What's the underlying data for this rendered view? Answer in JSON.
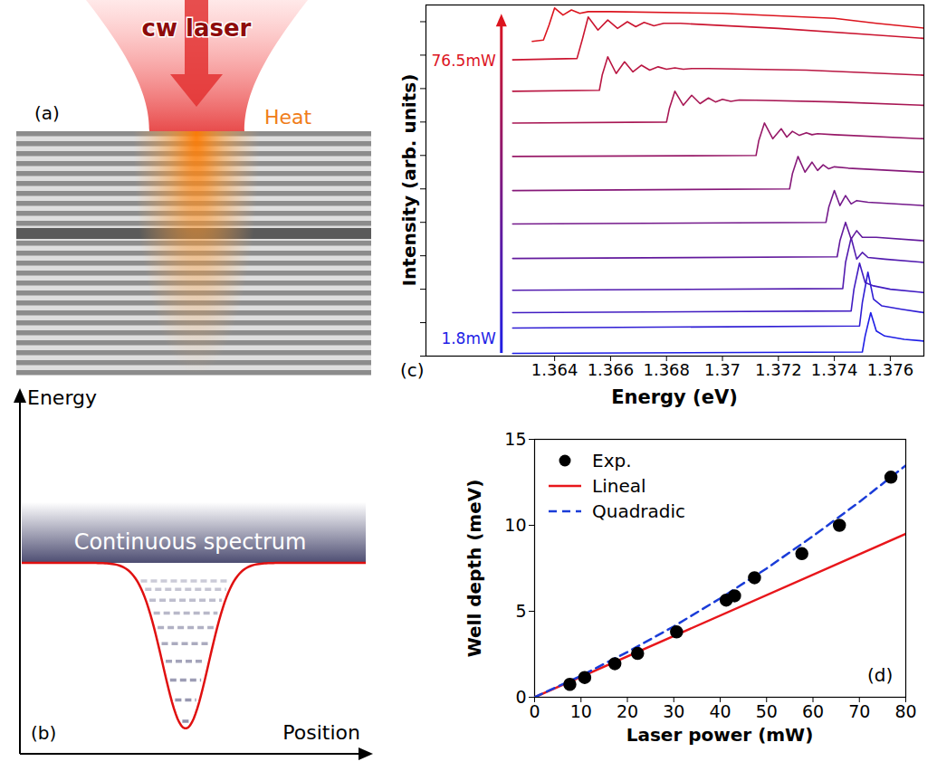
{
  "chart_data": [
    {
      "type": "line",
      "panel_label": "(c)",
      "x_label": "Energy (eV)",
      "y_label": "Intensity (arb. units)",
      "xlim": [
        1.3594,
        1.3772
      ],
      "xticks": [
        1.364,
        1.366,
        1.368,
        1.37,
        1.372,
        1.374,
        1.376
      ],
      "ylim": [
        0,
        10.5
      ],
      "yticks": [
        0,
        1,
        2,
        3,
        4,
        5,
        6,
        7,
        8,
        9,
        10
      ],
      "tick_labels": "x",
      "annotations": [
        {
          "text": "1.8mW",
          "color": "#1e1ee6"
        },
        {
          "text": "76.5mW",
          "color": "#dc141e"
        }
      ],
      "series": [
        {
          "color": "#1e1ee6",
          "x": [
            1.3625,
            1.375,
            1.3751,
            1.3753,
            1.3755,
            1.3758,
            1.3765,
            1.3772
          ],
          "values": [
            0.08,
            0.12,
            0.6,
            1.3,
            0.75,
            0.6,
            0.5,
            0.45
          ]
        },
        {
          "color": "#2f1dd4",
          "x": [
            1.3625,
            1.3749,
            1.375,
            1.3752,
            1.3754,
            1.3757,
            1.3764,
            1.3772
          ],
          "values": [
            0.84,
            0.9,
            1.6,
            2.51,
            1.7,
            1.5,
            1.4,
            1.3
          ]
        },
        {
          "color": "#411cc2",
          "x": [
            1.3625,
            1.3746,
            1.3747,
            1.3749,
            1.3751,
            1.3754,
            1.376,
            1.3772
          ],
          "values": [
            1.3,
            1.35,
            2.0,
            2.78,
            2.2,
            2.1,
            2.0,
            1.9
          ]
        },
        {
          "color": "#521baf",
          "x": [
            1.3625,
            1.3743,
            1.3744,
            1.3746,
            1.3748,
            1.375,
            1.3752,
            1.3758,
            1.3772
          ],
          "values": [
            1.97,
            2.02,
            2.8,
            3.54,
            2.9,
            3.1,
            2.95,
            2.9,
            2.8
          ]
        },
        {
          "color": "#631a9d",
          "x": [
            1.3625,
            1.3741,
            1.3742,
            1.3744,
            1.3746,
            1.3748,
            1.375,
            1.3755,
            1.3772
          ],
          "values": [
            2.92,
            2.97,
            3.45,
            4.0,
            3.5,
            3.75,
            3.55,
            3.55,
            3.45
          ]
        },
        {
          "color": "#74198b",
          "x": [
            1.3625,
            1.3737,
            1.3738,
            1.374,
            1.3742,
            1.3744,
            1.3746,
            1.3748,
            1.3752,
            1.3772
          ],
          "values": [
            3.95,
            4.0,
            4.45,
            4.95,
            4.5,
            4.8,
            4.55,
            4.65,
            4.6,
            4.5
          ]
        },
        {
          "color": "#861979",
          "x": [
            1.3625,
            1.3724,
            1.3725,
            1.3727,
            1.37295,
            1.3732,
            1.3734,
            1.3736,
            1.3738,
            1.374,
            1.3745,
            1.3772
          ],
          "values": [
            4.95,
            5.0,
            5.45,
            5.97,
            5.5,
            5.8,
            5.55,
            5.72,
            5.6,
            5.66,
            5.62,
            5.5
          ]
        },
        {
          "color": "#971867",
          "x": [
            1.3625,
            1.3712,
            1.3713,
            1.3715,
            1.3718,
            1.3721,
            1.3723,
            1.3725,
            1.37275,
            1.373,
            1.3732,
            1.3734,
            1.374,
            1.3772
          ],
          "values": [
            5.97,
            6.0,
            6.45,
            6.97,
            6.5,
            6.8,
            6.55,
            6.72,
            6.6,
            6.68,
            6.62,
            6.65,
            6.62,
            6.5
          ]
        },
        {
          "color": "#a81754",
          "x": [
            1.3625,
            1.368,
            1.3681,
            1.3683,
            1.3686,
            1.3689,
            1.3692,
            1.3695,
            1.36975,
            1.37,
            1.3703,
            1.3706,
            1.3712,
            1.374,
            1.3772
          ],
          "values": [
            6.97,
            7.0,
            7.4,
            7.92,
            7.5,
            7.8,
            7.55,
            7.72,
            7.6,
            7.68,
            7.62,
            7.66,
            7.65,
            7.6,
            7.5
          ]
        },
        {
          "color": "#b91642",
          "x": [
            1.3625,
            1.3656,
            1.3657,
            1.3659,
            1.3662,
            1.3665,
            1.3668,
            1.3671,
            1.3674,
            1.3677,
            1.368,
            1.3683,
            1.3686,
            1.3689,
            1.3695,
            1.373,
            1.3772
          ],
          "values": [
            7.92,
            7.95,
            8.4,
            8.95,
            8.45,
            8.8,
            8.5,
            8.7,
            8.55,
            8.65,
            8.58,
            8.62,
            8.58,
            8.6,
            8.6,
            8.55,
            8.4
          ]
        },
        {
          "color": "#cb1530",
          "x": [
            1.3625,
            1.3648,
            1.365,
            1.3652,
            1.36555,
            1.3659,
            1.36625,
            1.3666,
            1.3669,
            1.3672,
            1.36755,
            1.3679,
            1.3685,
            1.372,
            1.3755,
            1.3772
          ],
          "values": [
            8.86,
            8.9,
            9.5,
            10.14,
            9.75,
            10.05,
            9.8,
            10.0,
            9.85,
            9.98,
            9.88,
            9.95,
            9.95,
            9.8,
            9.6,
            9.5
          ]
        },
        {
          "color": "#dc141e",
          "x": [
            1.3632,
            1.3636,
            1.3638,
            1.364,
            1.3643,
            1.3646,
            1.3649,
            1.3652,
            1.366,
            1.37,
            1.374,
            1.3755,
            1.3772
          ],
          "values": [
            9.41,
            9.45,
            9.9,
            10.41,
            10.2,
            10.35,
            10.25,
            10.3,
            10.3,
            10.25,
            10.1,
            9.95,
            9.81
          ]
        }
      ]
    },
    {
      "type": "scatter",
      "panel_label": "(d)",
      "x_label": "Laser power (mW)",
      "y_label": "Well depth (meV)",
      "xlim": [
        0,
        80
      ],
      "xticks": [
        0,
        10,
        20,
        30,
        40,
        50,
        60,
        70,
        80
      ],
      "ylim": [
        0,
        15
      ],
      "yticks": [
        0,
        5,
        10,
        15
      ],
      "legend": "top-left",
      "series": [
        {
          "name": "Exp.",
          "type": "scatter",
          "marker": "circle",
          "color": "#000000",
          "x": [
            7.6,
            10.8,
            17.3,
            22.2,
            30.6,
            41.3,
            43.1,
            47.4,
            57.6,
            65.7,
            76.8
          ],
          "values": [
            0.75,
            1.15,
            1.95,
            2.55,
            3.8,
            5.65,
            5.9,
            6.95,
            8.35,
            10.0,
            12.8
          ]
        },
        {
          "name": "Lineal",
          "type": "line",
          "line_style": "solid",
          "color": "#e8161b",
          "x": [
            0,
            80
          ],
          "values": [
            0,
            9.5
          ]
        },
        {
          "name": "Quadradic",
          "type": "line",
          "line_style": "dashed",
          "color": "#1a3cd8",
          "x": [
            0,
            10,
            20,
            30,
            40,
            50,
            60,
            70,
            80
          ],
          "values": [
            0,
            1.25,
            2.63,
            4.12,
            5.75,
            7.49,
            9.37,
            11.36,
            13.48
          ]
        }
      ]
    }
  ],
  "diagrams": {
    "a": {
      "panel_label": "(a)",
      "laser_label": "cw laser",
      "heat_label": "Heat"
    },
    "b": {
      "panel_label": "(b)",
      "y_axis_label": "Energy",
      "x_axis_label": "Position",
      "band_label": "Continuous spectrum"
    }
  }
}
